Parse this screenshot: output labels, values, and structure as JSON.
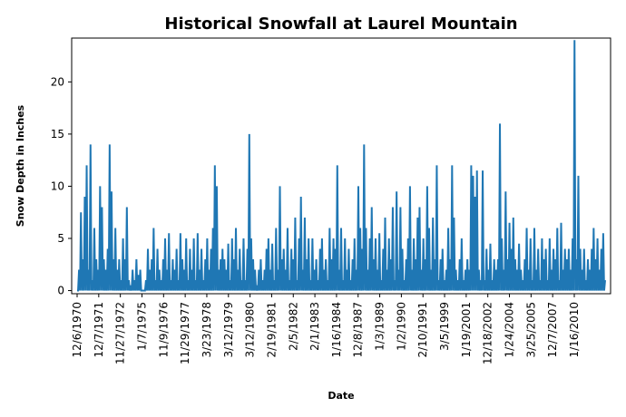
{
  "chart_data": {
    "type": "line",
    "title": "Historical Snowfall at Laurel Mountain",
    "xlabel": "Date",
    "ylabel": "Snow Depth in Inches",
    "ylim": [
      -0.3,
      24.2
    ],
    "yticks": [
      0,
      5,
      10,
      15,
      20
    ],
    "grid": false,
    "legend": "none",
    "line_color": "#1f77b4",
    "x_tick_labels": [
      "12/6/1970",
      "12/7/1971",
      "11/27/1972",
      "1/7/1975",
      "11/9/1976",
      "11/29/1977",
      "3/23/1978",
      "3/12/1979",
      "3/12/1980",
      "2/19/1981",
      "2/5/1982",
      "2/1/1983",
      "1/16/1984",
      "12/8/1987",
      "1/3/1989",
      "1/2/1990",
      "2/10/1991",
      "3/5/1999",
      "1/19/2001",
      "12/18/2002",
      "1/24/2004",
      "3/25/2005",
      "12/7/2007",
      "1/16/2010"
    ],
    "series": [
      {
        "name": "",
        "notable_peaks": [
          {
            "x": "around 12/7/1971",
            "y": 14
          },
          {
            "x": "between 3/23/1978 and 3/12/1979",
            "y": 15
          },
          {
            "x": "around 1/16/1984",
            "y": 14
          },
          {
            "x": "around 12/18/2002",
            "y": 16.2
          },
          {
            "x": "around 1/16/2010",
            "y": 24
          }
        ],
        "values": [
          0,
          2,
          7.5,
          3,
          9,
          12,
          2,
          14,
          1,
          6,
          3,
          2,
          10,
          8,
          3,
          2,
          4,
          14,
          9.5,
          3,
          6,
          2,
          3,
          1,
          5,
          3,
          8,
          1,
          0.5,
          2,
          1,
          3,
          1.5,
          2,
          0,
          0,
          1,
          4,
          2,
          3,
          6,
          1,
          4,
          2,
          1,
          3,
          5,
          2,
          5.5,
          1,
          3,
          2,
          4,
          1,
          5.5,
          3,
          2,
          5,
          1,
          4,
          2,
          5,
          1,
          5.5,
          2,
          4,
          1,
          3,
          5,
          2,
          4,
          6,
          12,
          10,
          2,
          3,
          4,
          3,
          2,
          4.5,
          1,
          5,
          3,
          6,
          2,
          4,
          1,
          5,
          1,
          4,
          15,
          5,
          3,
          2,
          0.5,
          2,
          3,
          1,
          2,
          4,
          5,
          2,
          4.5,
          1,
          6,
          2,
          10,
          3,
          4,
          2,
          6,
          1,
          4,
          3,
          7,
          1,
          5,
          9,
          2,
          7,
          3,
          5,
          1,
          5,
          2,
          3,
          1,
          4,
          5,
          2,
          3,
          1,
          6,
          3,
          5,
          4,
          12,
          2,
          6,
          1,
          5,
          2,
          4,
          1,
          3,
          5,
          2,
          10,
          6,
          4,
          14,
          6,
          2,
          5,
          8,
          3,
          5,
          2,
          5.5,
          1,
          4,
          7,
          2,
          5,
          3,
          8,
          1,
          9.5,
          2,
          8,
          4,
          1,
          3,
          5,
          10,
          2,
          5,
          3,
          7,
          8,
          2,
          5,
          3,
          10,
          6,
          2,
          7,
          3,
          12,
          1,
          3,
          4,
          1,
          2,
          6,
          3,
          12,
          7,
          2,
          1,
          3,
          5,
          1,
          2,
          3,
          2,
          12,
          11,
          9,
          11.5,
          2,
          1,
          11.5,
          1,
          4,
          2,
          4.5,
          1,
          3,
          2,
          3,
          16,
          5,
          2,
          9.5,
          3,
          6.5,
          4,
          7,
          3,
          2,
          4.5,
          2,
          1,
          3,
          6,
          2,
          5,
          1,
          6,
          2,
          4,
          1,
          5,
          3,
          4,
          1,
          5,
          2,
          4,
          3,
          6,
          1,
          6.5,
          2,
          4,
          3,
          4,
          2,
          5,
          24,
          3,
          11,
          4,
          2,
          4,
          1,
          3,
          2,
          4,
          6,
          3,
          5,
          2,
          4,
          5.5,
          1
        ]
      }
    ]
  }
}
